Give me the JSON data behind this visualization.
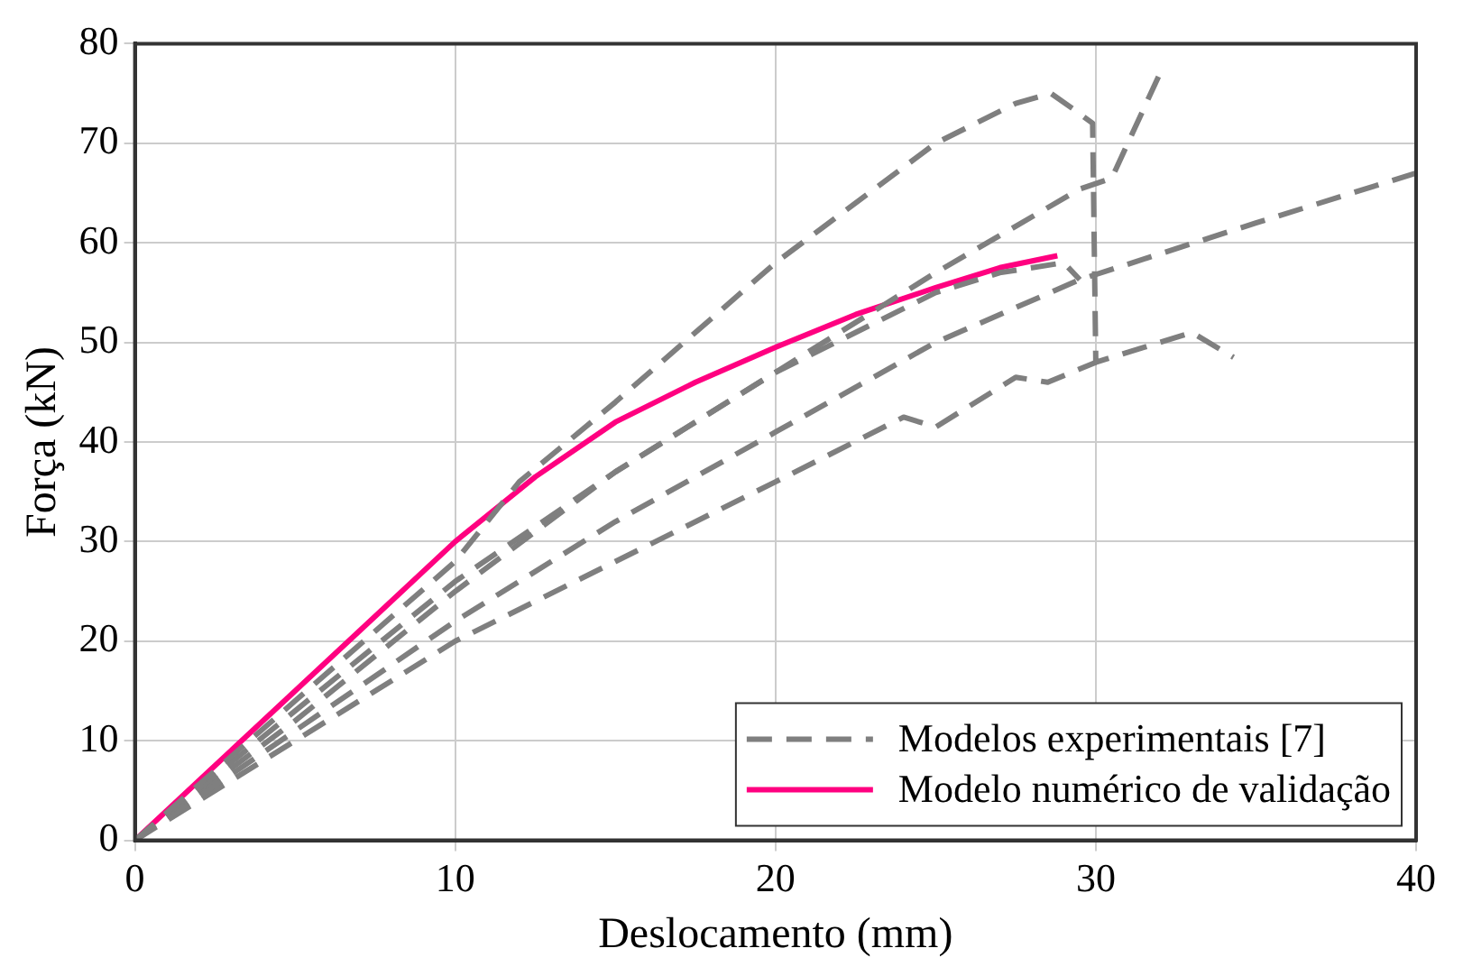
{
  "chart_data": {
    "type": "line",
    "xlabel": "Deslocamento (mm)",
    "ylabel": "Força (kN)",
    "xlim": [
      0,
      40
    ],
    "xticks": [
      0,
      10,
      20,
      30,
      40
    ],
    "ylim": [
      0,
      80
    ],
    "yticks": [
      0,
      10,
      20,
      30,
      40,
      50,
      60,
      70,
      80
    ],
    "grid": true,
    "legend": "bottom right",
    "marker": "none",
    "series": [
      {
        "name": "Modelos experimentais [7]",
        "color": "#7f7f7f",
        "line_style": "dashed",
        "x": [
          0,
          5,
          10,
          12,
          15,
          20,
          25,
          27.5,
          28.6,
          29.4,
          29.9,
          30,
          33,
          34.3
        ],
        "values": [
          0,
          14,
          28,
          36,
          44,
          58,
          70,
          74,
          75,
          73.2,
          72,
          48,
          51,
          48.5
        ]
      },
      {
        "color": "#7f7f7f",
        "line_style": "dashed",
        "x": [
          0,
          5,
          10,
          15,
          20,
          25,
          29.5,
          30.5,
          31.1,
          32
        ],
        "values": [
          0,
          13,
          26,
          37,
          47,
          57,
          65.4,
          66.5,
          70.7,
          77
        ]
      },
      {
        "color": "#7f7f7f",
        "line_style": "dashed",
        "x": [
          0,
          5,
          10,
          15,
          20,
          25,
          29.5,
          35,
          40
        ],
        "values": [
          0,
          11,
          22,
          32,
          41,
          50,
          56.3,
          62,
          67
        ]
      },
      {
        "color": "#7f7f7f",
        "line_style": "dashed",
        "x": [
          0,
          5,
          10,
          15,
          20,
          25,
          27,
          29,
          29.5
        ],
        "values": [
          0,
          12,
          25,
          37,
          47,
          55,
          57,
          58,
          56.3
        ]
      },
      {
        "color": "#7f7f7f",
        "line_style": "dashed",
        "x": [
          0,
          5,
          10,
          15,
          20,
          24,
          25,
          27.5,
          28.5,
          30
        ],
        "values": [
          0,
          10,
          20,
          28,
          36,
          42.5,
          41.5,
          46.5,
          46,
          48
        ]
      },
      {
        "name": "Modelo numérico de validação",
        "color": "#ff0080",
        "line_style": "solid",
        "x": [
          0,
          2.5,
          5,
          7.5,
          10,
          12.5,
          15,
          17.5,
          20,
          22.5,
          25,
          27,
          28.8
        ],
        "values": [
          0,
          7.5,
          15,
          22.5,
          30,
          36.5,
          42,
          46,
          49.5,
          52.8,
          55.5,
          57.5,
          58.7
        ]
      }
    ]
  }
}
